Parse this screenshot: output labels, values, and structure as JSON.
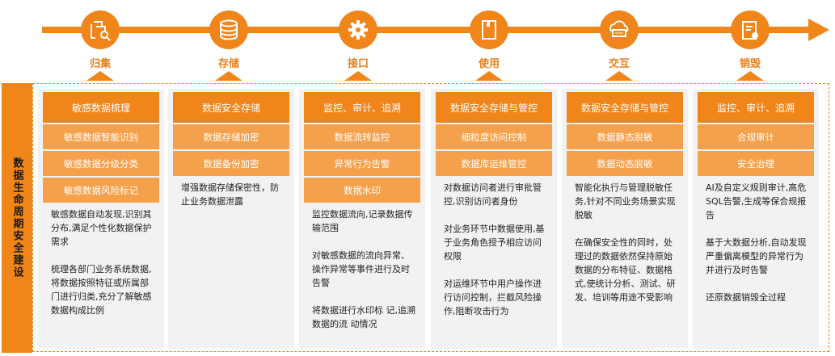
{
  "side_title": "数据生命周期安全建设",
  "stages": [
    {
      "label": "归集",
      "icon": "file-search-icon",
      "header": "敏感数据梳理",
      "subs": [
        "敏感数据智能识别",
        "敏感数据分级分类",
        "敏感数据风险标记"
      ],
      "desc": [
        "敏感数据自动发现,识别其分布,满足个性化数据保护需求",
        "梳理各部门业务系统数据,将数据按照特征或所属部门进行归类,充分了解敏感数据构成比例"
      ]
    },
    {
      "label": "存储",
      "icon": "database-icon",
      "header": "数据安全存储",
      "subs": [
        "数据存储加密",
        "数据备份加密"
      ],
      "desc": [
        "增强数据存储保密性，防止业务数据泄露"
      ]
    },
    {
      "label": "接口",
      "icon": "gear-icon",
      "header": "监控、审计、追溯",
      "subs": [
        "数据流转监控",
        "异常行为告警",
        "数据水印"
      ],
      "desc": [
        "监控数据流向,记录数据传输范围",
        "对敏感数据的流向异常、操作异常等事件进行及时告警",
        "将数据进行水印标 记,追溯数据的流 动情况"
      ]
    },
    {
      "label": "使用",
      "icon": "book-icon",
      "header": "数据安全存储与管控",
      "subs": [
        "细粒度访问控制",
        "数据库运维管控"
      ],
      "desc": [
        "对数据访问者进行审批管控,识别访问者身份",
        "对业务环节中数据使用,基于业务角色授予相应访问权限",
        "对运维环节中用户操作进行访问控制，拦截风险操作,阻断攻击行为"
      ]
    },
    {
      "label": "交互",
      "icon": "cloud-server-icon",
      "header": "数据安全存储与管控",
      "subs": [
        "数据静态脱敏",
        "数据动态脱敏"
      ],
      "desc": [
        "智能化执行与管理脱敏任务,针对不同业务场景实现脱敏",
        "在确保安全性的同时，处理过的数据依然保持原始数据的分布特征、数据格式,使统计分析、测试、研发、培训等用途不受影响"
      ]
    },
    {
      "label": "销毁",
      "icon": "clipboard-settings-icon",
      "header": "监控、审计、追溯",
      "subs": [
        "合规审计",
        "安全治理"
      ],
      "desc": [
        "AI及自定义规则审计,高危SQL告警,生成等保合规报告",
        "基于大数据分析,自动发现严重偏离模型的异常行为并进行及时告警",
        "还原数据销毁全过程"
      ]
    }
  ],
  "accent": "#f08519"
}
